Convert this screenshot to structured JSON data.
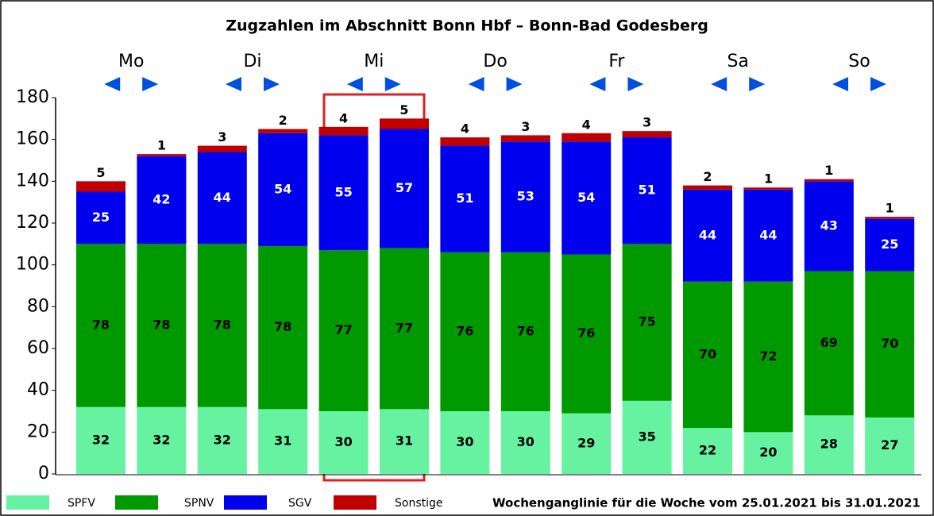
{
  "chart_data": {
    "type": "stacked-bar",
    "title": "Zugzahlen im Abschnitt Bonn Hbf – Bonn-Bad Godesberg",
    "note": "Wochenganglinie für die Woche vom 25.01.2021 bis 31.01.2021",
    "groups": [
      "Mo",
      "Di",
      "Mi",
      "Do",
      "Fr",
      "Sa",
      "So"
    ],
    "series": [
      {
        "name": "SPFV",
        "color": "#66f2a0",
        "label_color": "#000000",
        "values": [
          32,
          32,
          32,
          31,
          30,
          31,
          30,
          30,
          29,
          35,
          22,
          20,
          28,
          27
        ]
      },
      {
        "name": "SPNV",
        "color": "#009a00",
        "label_color": "#000000",
        "values": [
          78,
          78,
          78,
          78,
          77,
          77,
          76,
          76,
          76,
          75,
          70,
          72,
          69,
          70
        ]
      },
      {
        "name": "SGV",
        "color": "#0000ee",
        "label_color": "#ffffff",
        "values": [
          25,
          42,
          44,
          54,
          55,
          57,
          51,
          53,
          54,
          51,
          44,
          44,
          43,
          25
        ]
      },
      {
        "name": "Sonstige",
        "color": "#c00000",
        "label_color": "#000000",
        "values": [
          5,
          1,
          3,
          2,
          4,
          5,
          4,
          3,
          4,
          3,
          2,
          1,
          1,
          1
        ]
      }
    ],
    "ylim": [
      0,
      180
    ],
    "yticks": [
      0,
      20,
      40,
      60,
      80,
      100,
      120,
      140,
      160,
      180
    ],
    "grid": false
  }
}
